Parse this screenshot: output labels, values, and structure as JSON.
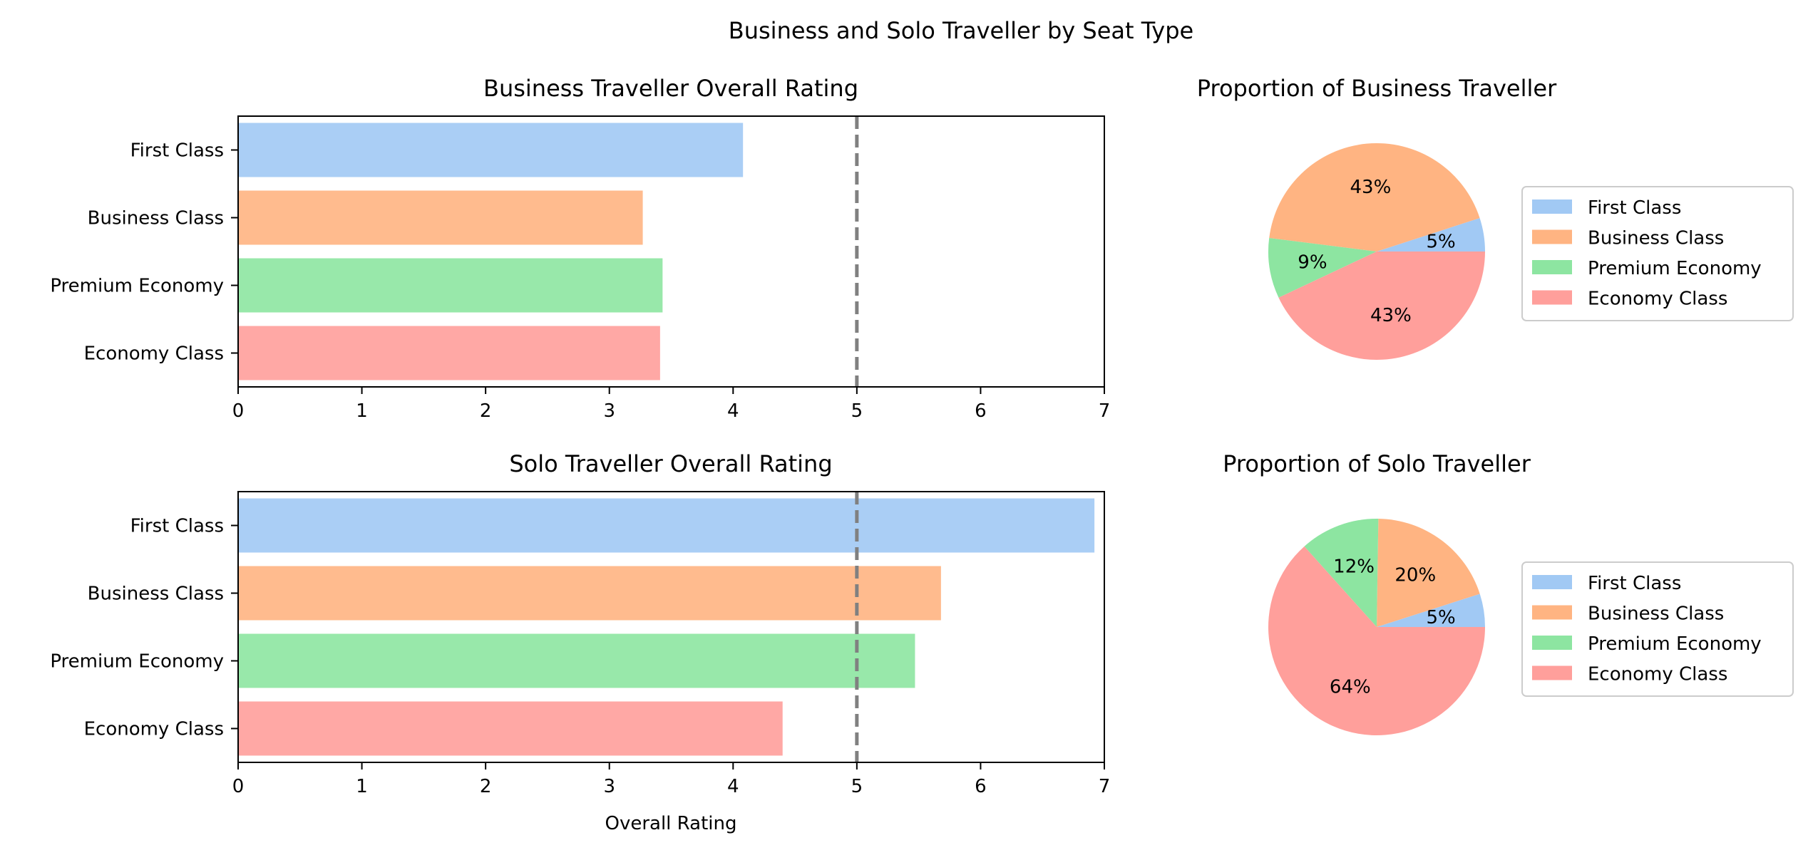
{
  "figure": {
    "title": "Business and Solo Traveller by Seat Type"
  },
  "colors": {
    "First Class": "#a1c9f4",
    "Business Class": "#ffb482",
    "Premium Economy": "#8de5a1",
    "Economy Class": "#ff9f9b",
    "bar_alpha": 0.9,
    "reference_line": "#808080"
  },
  "chart_data": [
    {
      "type": "bar",
      "orientation": "horizontal",
      "title": "Business Traveller Overall Rating",
      "categories": [
        "First Class",
        "Business Class",
        "Premium Economy",
        "Economy Class"
      ],
      "values": [
        4.08,
        3.27,
        3.43,
        3.41
      ],
      "xlabel": "",
      "xlim": [
        0,
        7
      ],
      "xticks": [
        0,
        1,
        2,
        3,
        4,
        5,
        6,
        7
      ],
      "reference_line": 5,
      "grid": false
    },
    {
      "type": "pie",
      "title": "Proportion of Business Traveller",
      "labels": [
        "First Class",
        "Business Class",
        "Premium Economy",
        "Economy Class"
      ],
      "values": [
        5,
        43,
        9,
        43
      ],
      "pct_labels": [
        "5%",
        "43%",
        "9%",
        "43%"
      ],
      "legend": "right"
    },
    {
      "type": "bar",
      "orientation": "horizontal",
      "title": "Solo Traveller Overall Rating",
      "categories": [
        "First Class",
        "Business Class",
        "Premium Economy",
        "Economy Class"
      ],
      "values": [
        6.92,
        5.68,
        5.47,
        4.4
      ],
      "xlabel": "Overall Rating",
      "xlim": [
        0,
        7
      ],
      "xticks": [
        0,
        1,
        2,
        3,
        4,
        5,
        6,
        7
      ],
      "reference_line": 5,
      "grid": false
    },
    {
      "type": "pie",
      "title": "Proportion of Solo Traveller",
      "labels": [
        "First Class",
        "Business Class",
        "Premium Economy",
        "Economy Class"
      ],
      "values": [
        5,
        20,
        12,
        64
      ],
      "pct_labels": [
        "5%",
        "20%",
        "12%",
        "64%"
      ],
      "legend": "right"
    }
  ]
}
